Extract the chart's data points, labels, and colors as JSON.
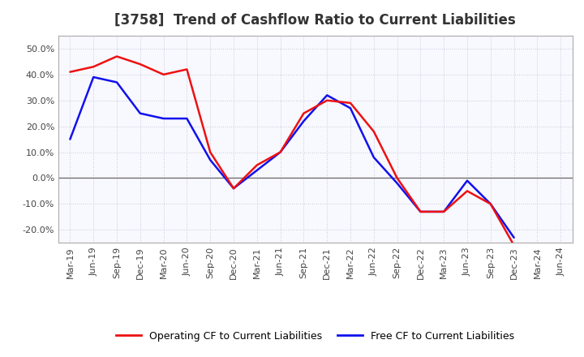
{
  "title": "[3758]  Trend of Cashflow Ratio to Current Liabilities",
  "x_labels": [
    "Mar-19",
    "Jun-19",
    "Sep-19",
    "Dec-19",
    "Mar-20",
    "Jun-20",
    "Sep-20",
    "Dec-20",
    "Mar-21",
    "Jun-21",
    "Sep-21",
    "Dec-21",
    "Mar-22",
    "Jun-22",
    "Sep-22",
    "Dec-22",
    "Mar-23",
    "Jun-23",
    "Sep-23",
    "Dec-23",
    "Mar-24",
    "Jun-24"
  ],
  "operating_cf": [
    0.41,
    0.43,
    0.47,
    0.44,
    0.4,
    0.42,
    0.1,
    -0.04,
    0.05,
    0.1,
    0.25,
    0.3,
    0.29,
    0.18,
    0.0,
    -0.13,
    -0.13,
    -0.05,
    -0.1,
    -0.26,
    null,
    null
  ],
  "free_cf": [
    0.15,
    0.39,
    0.37,
    0.25,
    0.23,
    0.23,
    0.07,
    -0.04,
    0.03,
    0.1,
    0.22,
    0.32,
    0.27,
    0.08,
    -0.02,
    -0.13,
    -0.13,
    -0.01,
    -0.1,
    -0.23,
    null,
    null
  ],
  "ylim": [
    -0.25,
    0.55
  ],
  "yticks": [
    -0.2,
    -0.1,
    0.0,
    0.1,
    0.2,
    0.3,
    0.4,
    0.5
  ],
  "operating_color": "#EE1111",
  "free_color": "#1111EE",
  "grid_color": "#BBBBCC",
  "bg_color": "#FFFFFF",
  "plot_bg_color": "#F8F8FF",
  "legend_op": "Operating CF to Current Liabilities",
  "legend_free": "Free CF to Current Liabilities",
  "title_fontsize": 12,
  "tick_fontsize": 8,
  "legend_fontsize": 9
}
